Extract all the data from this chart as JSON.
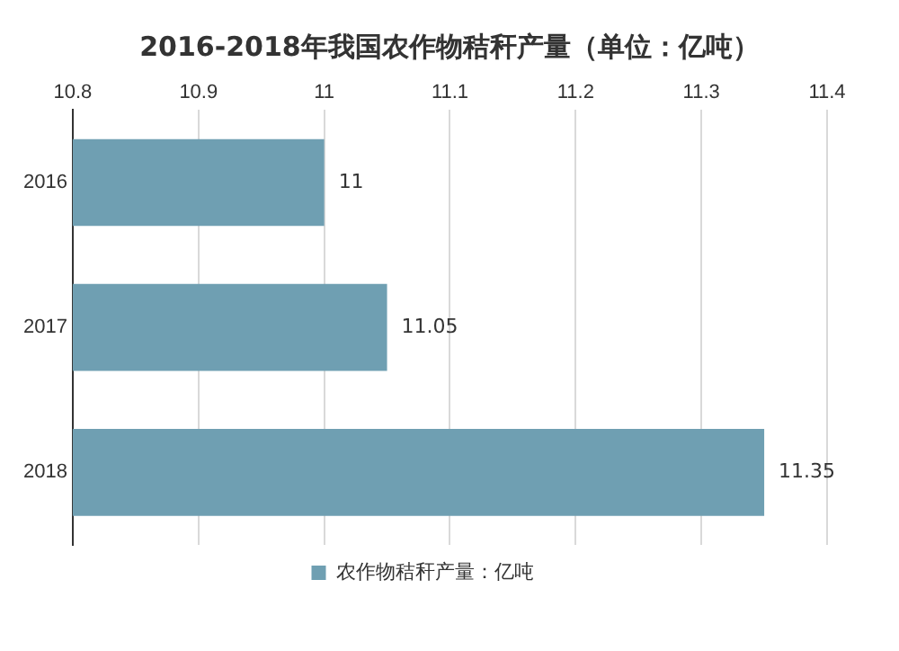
{
  "chart_data": {
    "type": "bar",
    "orientation": "horizontal",
    "title": "2016-2018年我国农作物秸秆产量（单位：亿吨）",
    "categories": [
      "2016",
      "2017",
      "2018"
    ],
    "series": [
      {
        "name": "农作物秸秆产量：亿吨",
        "color": "#6f9fb2",
        "values": [
          11,
          11.05,
          11.35
        ]
      }
    ],
    "xlim": [
      10.8,
      11.4
    ],
    "xticks": [
      10.8,
      10.9,
      11,
      11.1,
      11.2,
      11.3,
      11.4
    ],
    "grid": "x",
    "legend": "bottom",
    "data_labels": true
  }
}
